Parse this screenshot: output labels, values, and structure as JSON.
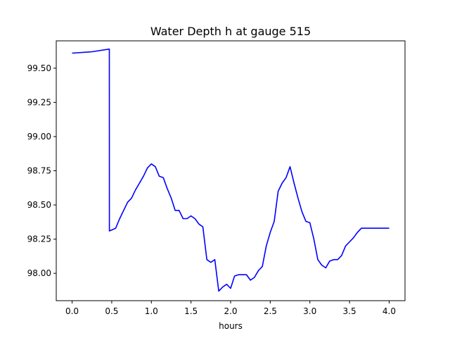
{
  "chart_data": {
    "type": "line",
    "title": "Water Depth h at gauge 515",
    "xlabel": "hours",
    "ylabel": "",
    "xlim": [
      -0.2,
      4.2
    ],
    "ylim": [
      97.8,
      99.7
    ],
    "xticks": [
      0.0,
      0.5,
      1.0,
      1.5,
      2.0,
      2.5,
      3.0,
      3.5,
      4.0
    ],
    "xtick_labels": [
      "0.0",
      "0.5",
      "1.0",
      "1.5",
      "2.0",
      "2.5",
      "3.0",
      "3.5",
      "4.0"
    ],
    "yticks": [
      98.0,
      98.25,
      98.5,
      98.75,
      99.0,
      99.25,
      99.5
    ],
    "ytick_labels": [
      "98.00",
      "98.25",
      "98.50",
      "98.75",
      "99.00",
      "99.25",
      "99.50"
    ],
    "grid": false,
    "series": [
      {
        "color": "#0000ff",
        "x": [
          0.0,
          0.25,
          0.47,
          0.471,
          0.55,
          0.6,
          0.7,
          0.75,
          0.8,
          0.85,
          0.9,
          0.95,
          1.0,
          1.05,
          1.1,
          1.15,
          1.2,
          1.25,
          1.3,
          1.35,
          1.4,
          1.45,
          1.5,
          1.55,
          1.6,
          1.65,
          1.7,
          1.75,
          1.8,
          1.85,
          1.9,
          1.95,
          2.0,
          2.05,
          2.1,
          2.15,
          2.2,
          2.25,
          2.3,
          2.35,
          2.4,
          2.45,
          2.5,
          2.55,
          2.6,
          2.65,
          2.7,
          2.75,
          2.8,
          2.85,
          2.9,
          2.95,
          3.0,
          3.05,
          3.1,
          3.15,
          3.2,
          3.25,
          3.3,
          3.35,
          3.4,
          3.45,
          3.5,
          3.55,
          3.6,
          3.65,
          3.7,
          3.75,
          3.8,
          3.85,
          3.9,
          3.95,
          4.0
        ],
        "y": [
          99.61,
          99.62,
          99.64,
          98.31,
          98.33,
          98.4,
          98.52,
          98.55,
          98.61,
          98.66,
          98.71,
          98.77,
          98.8,
          98.78,
          98.71,
          98.7,
          98.62,
          98.55,
          98.46,
          98.46,
          98.4,
          98.4,
          98.42,
          98.4,
          98.36,
          98.34,
          98.1,
          98.08,
          98.1,
          97.87,
          97.9,
          97.92,
          97.89,
          97.98,
          97.99,
          97.99,
          97.99,
          97.95,
          97.97,
          98.02,
          98.05,
          98.2,
          98.3,
          98.38,
          98.6,
          98.66,
          98.7,
          98.78,
          98.66,
          98.55,
          98.45,
          98.38,
          98.37,
          98.25,
          98.1,
          98.06,
          98.04,
          98.09,
          98.1,
          98.1,
          98.13,
          98.2,
          98.23,
          98.26,
          98.3,
          98.33,
          98.33,
          98.33,
          98.33,
          98.33,
          98.33,
          98.33,
          98.33
        ]
      }
    ]
  }
}
